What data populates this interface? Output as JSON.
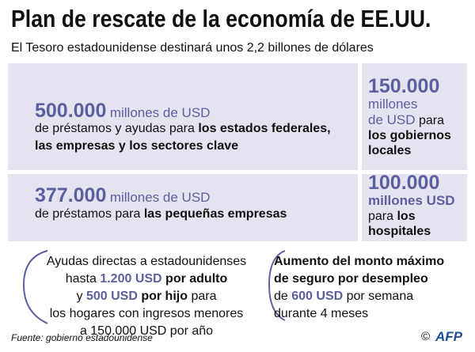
{
  "header": {
    "title": "Plan de rescate de la economía de EE.UU.",
    "subtitle": "El Tesoro estadounidense destinará unos 2,2 billones de dólares"
  },
  "boxes": [
    {
      "amount": "500.000",
      "unit": "millones de USD",
      "line1": [
        "de préstamos y ayudas para ",
        "los estados federales,"
      ],
      "line2": "las empresas y los sectores clave"
    },
    {
      "amount": "377.000",
      "unit": "millones de USD",
      "line1": [
        "de préstamos para ",
        "las pequeñas empresas"
      ]
    },
    {
      "amount": "150.000",
      "unit": [
        "millones",
        "de USD"
      ],
      "text": [
        "para ",
        "los gobiernos locales"
      ]
    },
    {
      "amount": "100.000",
      "unit": "millones USD",
      "text": [
        "para ",
        "los hospitales"
      ]
    }
  ],
  "direct_aid": {
    "lines": [
      "Ayudas directas a estadounidenses",
      "hasta ",
      "1.200 USD",
      " por adulto",
      "y ",
      "500 USD",
      " por hijo",
      " para",
      "los hogares con ingresos menores",
      "a 150.000 USD por año"
    ]
  },
  "unemployment": {
    "lines": [
      "Aumento del monto máximo",
      "de seguro por desempleo",
      "de ",
      "600 USD",
      " por semana",
      "durante 4 meses"
    ]
  },
  "footer": {
    "source": "Fuente: gobierno estadounidense",
    "copyright": "©",
    "logo": "AFP"
  }
}
